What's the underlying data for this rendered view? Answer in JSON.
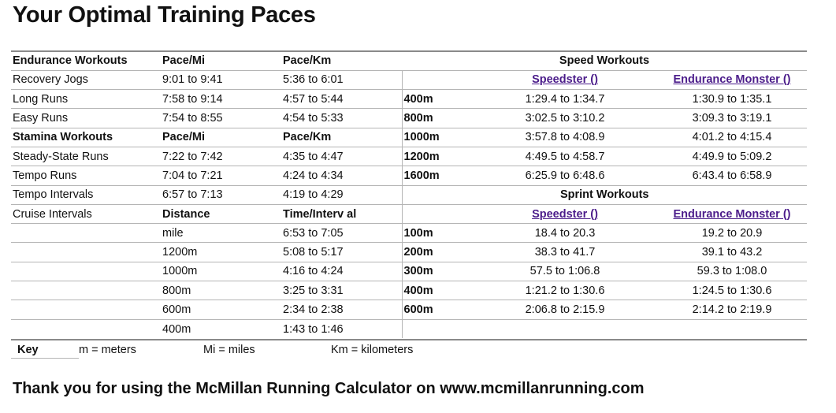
{
  "title": "Your Optimal Training Paces",
  "footer": "Thank you for using the McMillan Running Calculator on www.mcmillanrunning.com",
  "headers": {
    "endurance": "Endurance Workouts",
    "pace_mi": "Pace/Mi",
    "pace_km": "Pace/Km",
    "speed": "Speed Workouts",
    "stamina": "Stamina Workouts",
    "distance": "Distance",
    "time_interval": "Time/Interv al",
    "sprint": "Sprint Workouts",
    "speedster": "Speedster ()",
    "endurance_monster": "Endurance Monster ()"
  },
  "endurance": [
    {
      "name": "Recovery Jogs",
      "mi": "9:01 to 9:41",
      "km": "5:36 to 6:01"
    },
    {
      "name": "Long Runs",
      "mi": "7:58 to 9:14",
      "km": "4:57 to 5:44"
    },
    {
      "name": "Easy Runs",
      "mi": "7:54 to 8:55",
      "km": "4:54 to 5:33"
    }
  ],
  "stamina": [
    {
      "name": "Steady-State Runs",
      "mi": "7:22 to 7:42",
      "km": "4:35 to 4:47"
    },
    {
      "name": "Tempo Runs",
      "mi": "7:04 to 7:21",
      "km": "4:24 to 4:34"
    },
    {
      "name": "Tempo Intervals",
      "mi": "6:57 to 7:13",
      "km": "4:19 to 4:29"
    }
  ],
  "cruise_label": "Cruise Intervals",
  "cruise": [
    {
      "distance": "mile",
      "time": "6:53 to 7:05"
    },
    {
      "distance": "1200m",
      "time": "5:08 to 5:17"
    },
    {
      "distance": "1000m",
      "time": "4:16 to 4:24"
    },
    {
      "distance": "800m",
      "time": "3:25 to 3:31"
    },
    {
      "distance": "600m",
      "time": "2:34 to 2:38"
    },
    {
      "distance": "400m",
      "time": "1:43 to 1:46"
    }
  ],
  "speed": [
    {
      "dist": "400m",
      "speedster": "1:29.4 to 1:34.7",
      "monster": "1:30.9 to 1:35.1"
    },
    {
      "dist": "800m",
      "speedster": "3:02.5 to 3:10.2",
      "monster": "3:09.3 to 3:19.1"
    },
    {
      "dist": "1000m",
      "speedster": "3:57.8 to 4:08.9",
      "monster": "4:01.2 to 4:15.4"
    },
    {
      "dist": "1200m",
      "speedster": "4:49.5 to 4:58.7",
      "monster": "4:49.9 to 5:09.2"
    },
    {
      "dist": "1600m",
      "speedster": "6:25.9 to 6:48.6",
      "monster": "6:43.4 to 6:58.9"
    }
  ],
  "sprint": [
    {
      "dist": "100m",
      "speedster": "18.4 to 20.3",
      "monster": "19.2 to 20.9"
    },
    {
      "dist": "200m",
      "speedster": "38.3 to 41.7",
      "monster": "39.1 to 43.2"
    },
    {
      "dist": "300m",
      "speedster": "57.5 to 1:06.8",
      "monster": "59.3 to 1:08.0"
    },
    {
      "dist": "400m",
      "speedster": "1:21.2 to 1:30.6",
      "monster": "1:24.5 to 1:30.6"
    },
    {
      "dist": "600m",
      "speedster": "2:06.8 to 2:15.9",
      "monster": "2:14.2 to 2:19.9"
    }
  ],
  "key": {
    "label": "Key",
    "meters": "m = meters",
    "miles": "Mi = miles",
    "km": "Km = kilometers"
  }
}
